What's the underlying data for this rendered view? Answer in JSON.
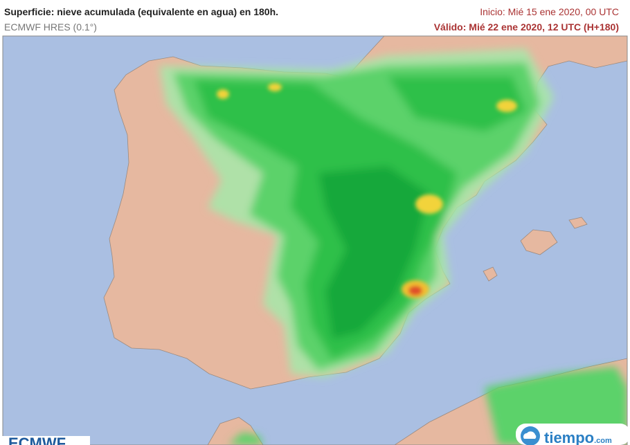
{
  "header": {
    "title": "Superficie: nieve acumulada (equivalente en agua) en 180h.",
    "model": "ECMWF HRES (0.1°)",
    "init": "Inicio: Mié 15 ene 2020, 00 UTC",
    "valid": "Válido: Mié 22 ene 2020, 12 UTC (H+180)"
  },
  "logos": {
    "left": "ECMWF",
    "right": "tiempo",
    "right_suffix": ".com"
  }
}
